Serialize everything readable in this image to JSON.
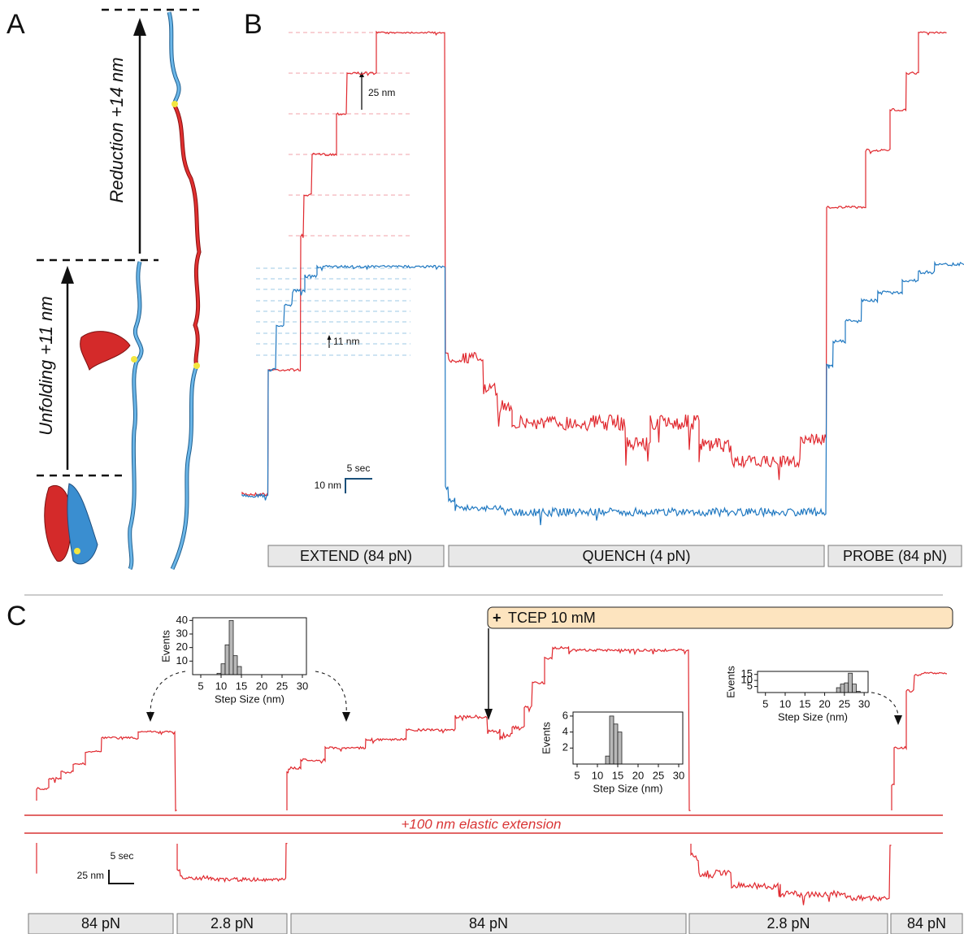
{
  "panel_labels": [
    "A",
    "B",
    "C"
  ],
  "panel_a": {
    "reduction_label": "Reduction +14 nm",
    "unfolding_label": "Unfolding +11 nm"
  },
  "panel_b": {
    "step_label_red": "25 nm",
    "step_label_blue": "11 nm",
    "scale_time": "5 sec",
    "scale_length": "10 nm",
    "phases": [
      "EXTEND (84 pN)",
      "QUENCH (4 pN)",
      "PROBE (84 pN)"
    ]
  },
  "panel_c": {
    "tcep_plus": "+",
    "tcep_label": "TCEP 10 mM",
    "elastic_label": "+100 nm elastic extension",
    "scale_time": "5 sec",
    "scale_length": "25 nm",
    "forces": [
      "84 pN",
      "2.8 pN",
      "84 pN",
      "2.8 pN",
      "84 pN"
    ],
    "histograms": [
      {
        "type": "histogram",
        "y_label": "Events",
        "x_label": "Step Size (nm)",
        "bins": [
          9,
          10,
          11,
          12,
          13,
          14,
          15
        ],
        "counts": [
          1,
          8,
          22,
          40,
          14,
          6
        ],
        "xlim": [
          3,
          31
        ],
        "ylim": [
          0,
          42
        ],
        "xticks": [
          5,
          10,
          15,
          20,
          25,
          30
        ],
        "yticks": [
          10,
          20,
          30,
          40
        ]
      },
      {
        "type": "histogram",
        "y_label": "Events",
        "x_label": "Step Size (nm)",
        "bins": [
          12,
          13,
          14,
          15,
          16
        ],
        "counts": [
          1,
          6,
          5,
          4
        ],
        "xlim": [
          4,
          31
        ],
        "ylim": [
          0,
          6.5
        ],
        "xticks": [
          5,
          10,
          15,
          20,
          25,
          30
        ],
        "yticks": [
          2,
          4,
          6
        ]
      },
      {
        "type": "histogram",
        "y_label": "Events",
        "x_label": "Step Size (nm)",
        "bins": [
          23,
          24,
          25,
          26,
          27,
          28,
          29
        ],
        "counts": [
          4,
          7,
          8,
          16,
          7,
          1
        ],
        "xlim": [
          3,
          31
        ],
        "ylim": [
          0,
          17.5
        ],
        "xticks": [
          5,
          10,
          15,
          20,
          25,
          30
        ],
        "yticks": [
          5,
          10,
          15
        ]
      }
    ]
  }
}
